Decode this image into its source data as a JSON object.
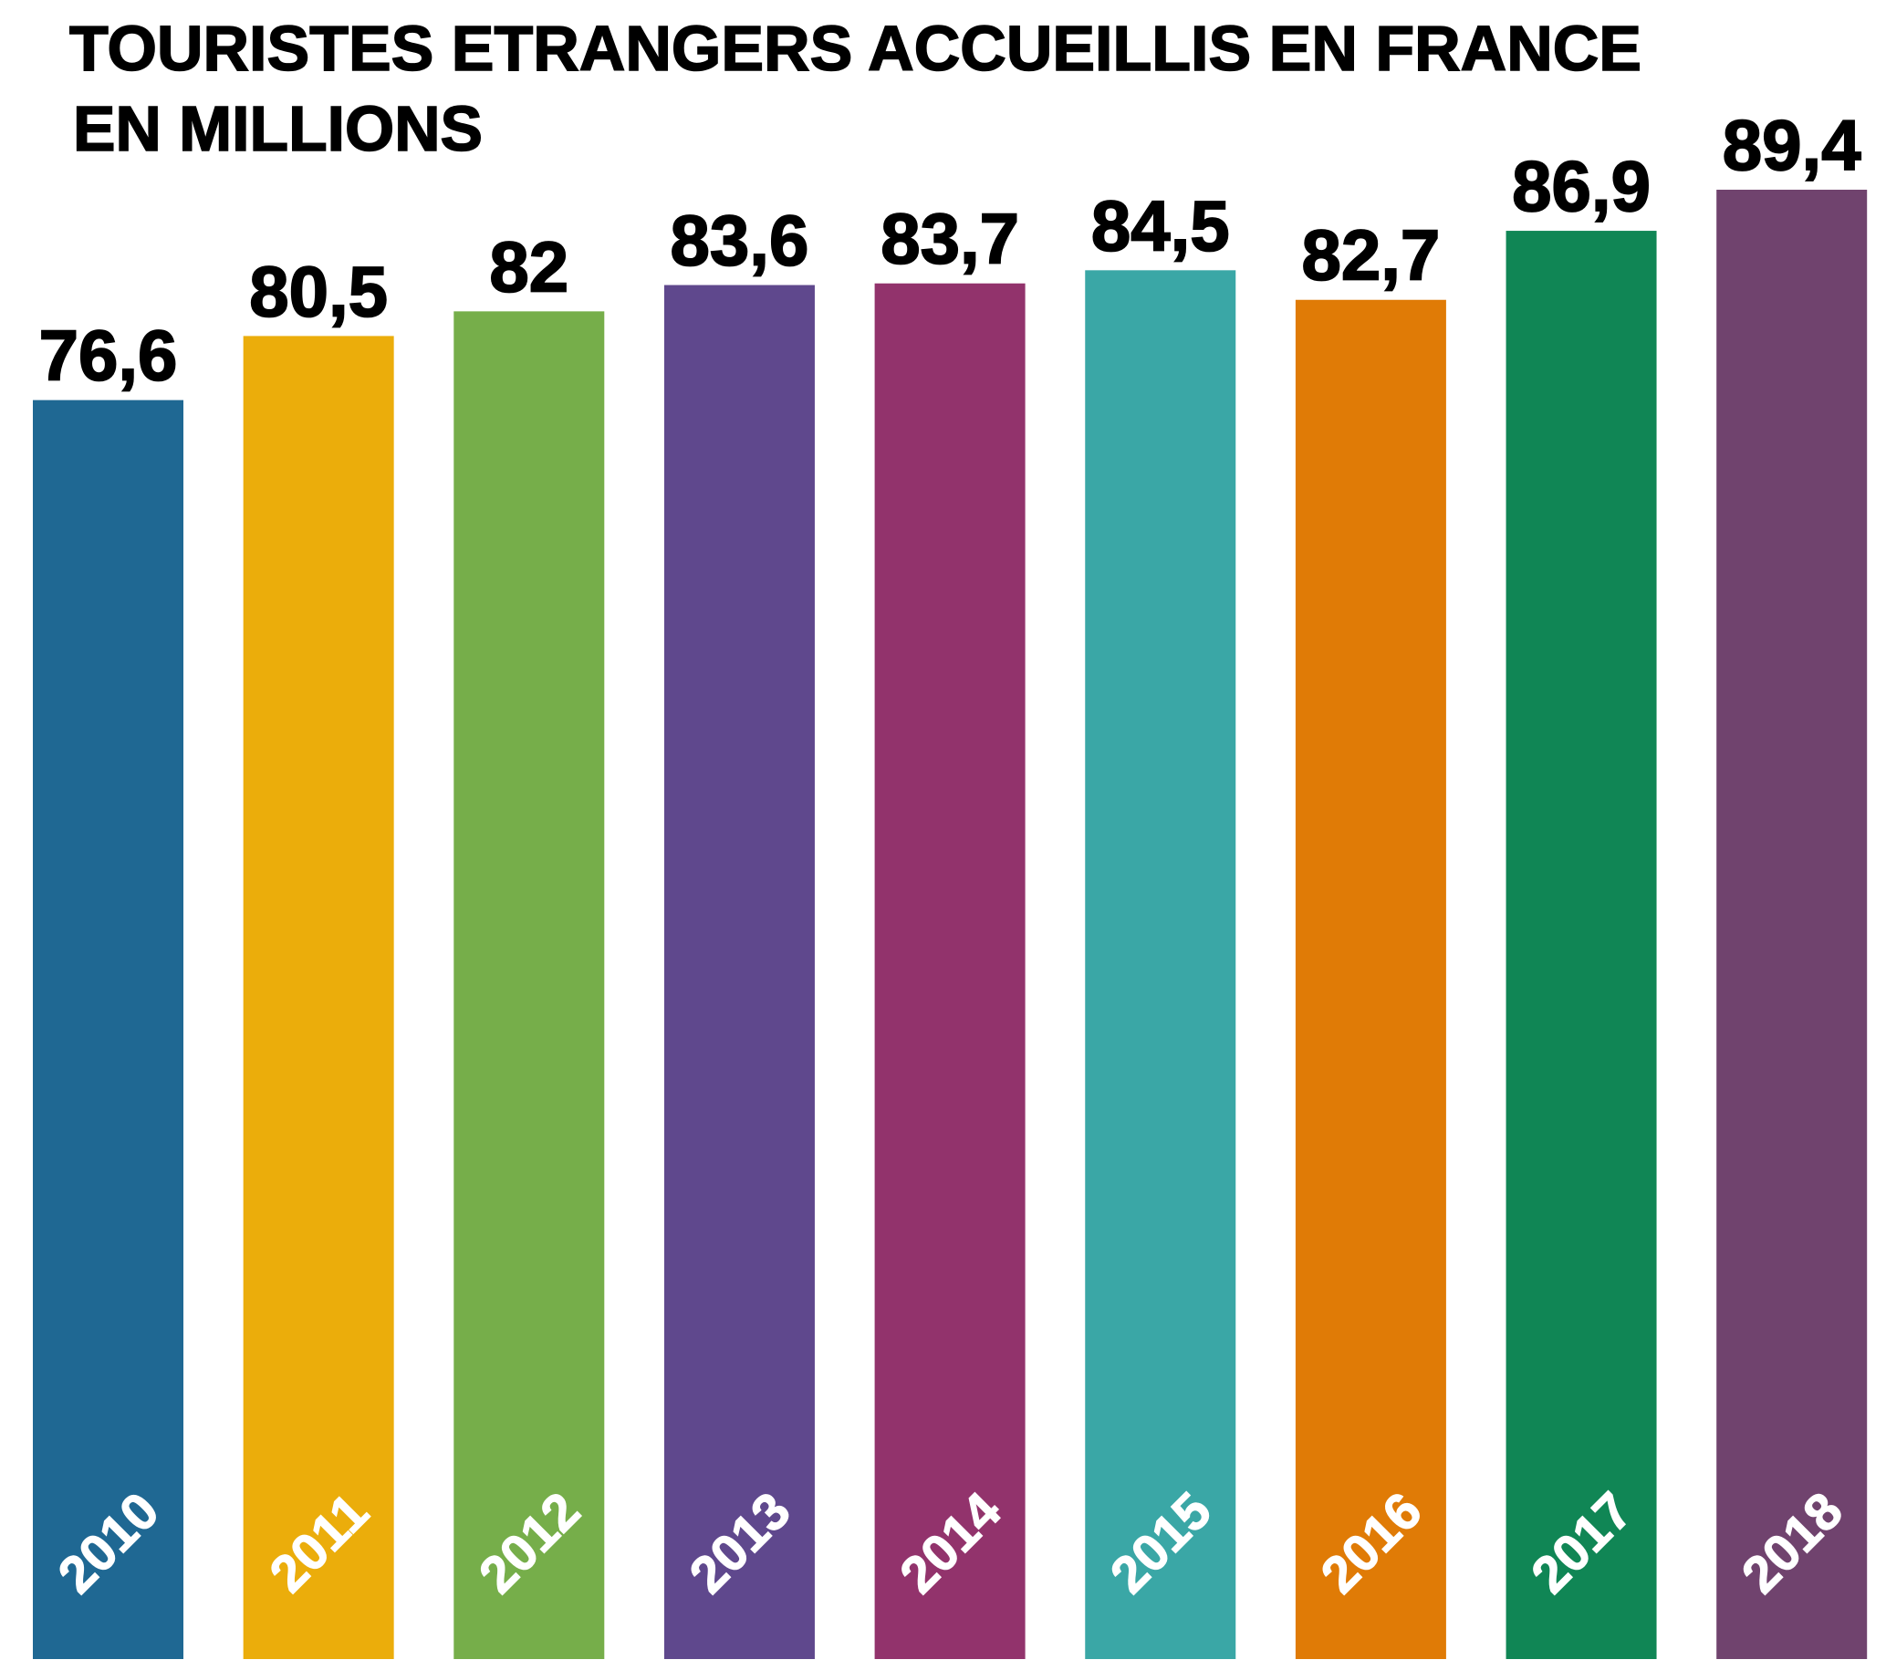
{
  "chart_data": {
    "type": "bar",
    "title": "TOURISTES ETRANGERS ACCUEILLIS EN FRANCE",
    "subtitle": "EN MILLIONS",
    "xlabel": "",
    "ylabel": "",
    "categories": [
      "2010",
      "2011",
      "2012",
      "2013",
      "2014",
      "2015",
      "2016",
      "2017",
      "2018"
    ],
    "values": [
      76.6,
      80.5,
      82,
      83.6,
      83.7,
      84.5,
      82.7,
      86.9,
      89.4
    ],
    "value_labels": [
      "76,6",
      "80,5",
      "82",
      "83,6",
      "83,7",
      "84,5",
      "82,7",
      "86,9",
      "89,4"
    ],
    "colors": [
      "#1f6893",
      "#ebad0b",
      "#76ae4a",
      "#5f488d",
      "#92336c",
      "#3aa7a6",
      "#e07b06",
      "#108655",
      "#70436e"
    ],
    "ylim": [
      0,
      100
    ],
    "grid": false,
    "legend": "none"
  }
}
